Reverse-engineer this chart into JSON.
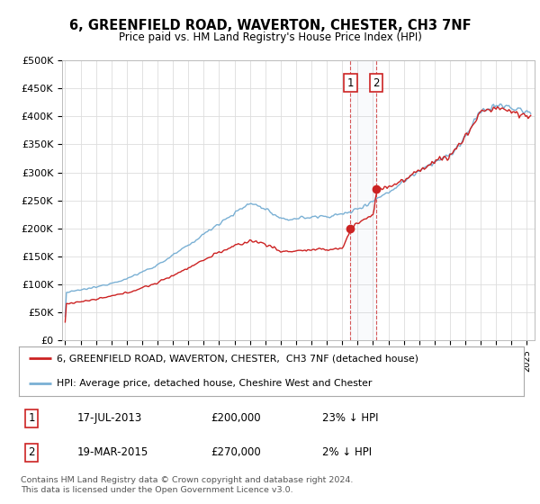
{
  "title": "6, GREENFIELD ROAD, WAVERTON, CHESTER, CH3 7NF",
  "subtitle": "Price paid vs. HM Land Registry's House Price Index (HPI)",
  "ylabel_ticks": [
    "£0",
    "£50K",
    "£100K",
    "£150K",
    "£200K",
    "£250K",
    "£300K",
    "£350K",
    "£400K",
    "£450K",
    "£500K"
  ],
  "ytick_values": [
    0,
    50000,
    100000,
    150000,
    200000,
    250000,
    300000,
    350000,
    400000,
    450000,
    500000
  ],
  "xlim_start": 1994.8,
  "xlim_end": 2025.5,
  "ylim": [
    0,
    500000
  ],
  "hpi_color": "#7ab0d4",
  "price_color": "#cc2222",
  "transaction1_date": 2013.54,
  "transaction1_price": 200000,
  "transaction2_date": 2015.21,
  "transaction2_price": 270000,
  "legend_line1": "6, GREENFIELD ROAD, WAVERTON, CHESTER,  CH3 7NF (detached house)",
  "legend_line2": "HPI: Average price, detached house, Cheshire West and Chester",
  "table_row1": [
    "1",
    "17-JUL-2013",
    "£200,000",
    "23% ↓ HPI"
  ],
  "table_row2": [
    "2",
    "19-MAR-2015",
    "£270,000",
    "2% ↓ HPI"
  ],
  "footer": "Contains HM Land Registry data © Crown copyright and database right 2024.\nThis data is licensed under the Open Government Licence v3.0.",
  "background_color": "#ffffff",
  "grid_color": "#dddddd"
}
